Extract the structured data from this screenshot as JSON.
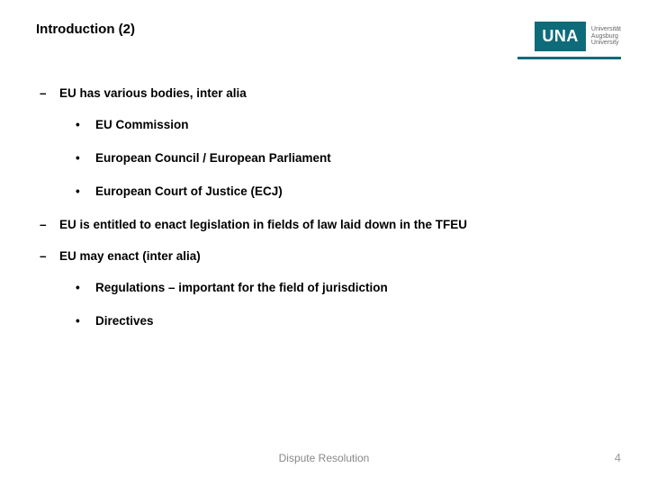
{
  "header": {
    "title": "Introduction (2)",
    "logo_mark": "UNA",
    "logo_text_line1": "Universität",
    "logo_text_line2": "Augsburg",
    "logo_text_line3": "University",
    "brand_color": "#0e6b7a"
  },
  "content": {
    "items": [
      {
        "type": "level1",
        "text": "EU has various bodies, inter alia",
        "children": [
          {
            "text": "EU Commission"
          },
          {
            "text": "European Council / European Parliament"
          },
          {
            "text": "European Court of Justice (ECJ)"
          }
        ]
      },
      {
        "type": "level1",
        "text": "EU is entitled to enact legislation in fields of law laid down in the TFEU",
        "children": []
      },
      {
        "type": "level1",
        "text": "EU may enact (inter alia)",
        "children": [
          {
            "text": "Regulations – important for the field of jurisdiction"
          },
          {
            "text": "Directives"
          }
        ]
      }
    ]
  },
  "footer": {
    "text": "Dispute Resolution",
    "page_number": "4"
  },
  "styling": {
    "bg_color": "#ffffff",
    "text_color": "#000000",
    "footer_color": "#888888",
    "pagenum_color": "#999999",
    "title_fontsize": 15,
    "body_fontsize": 13.5,
    "footer_fontsize": 12
  }
}
